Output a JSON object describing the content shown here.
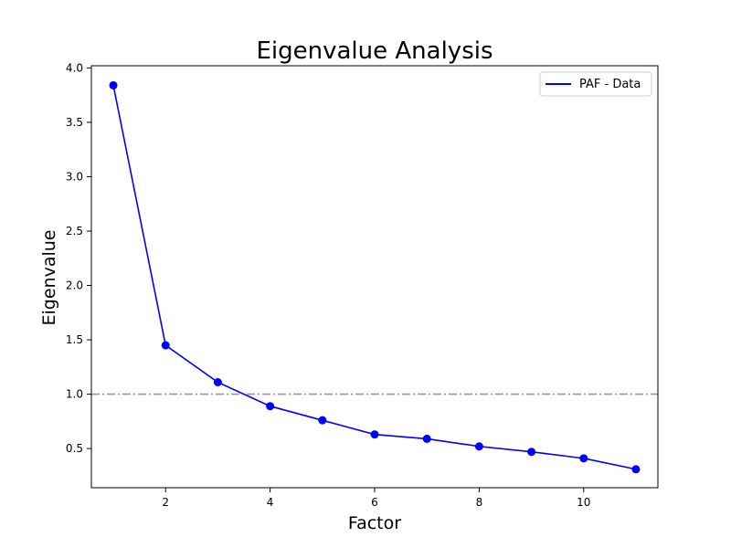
{
  "chart_data": {
    "type": "line",
    "title": "Eigenvalue Analysis",
    "xlabel": "Factor",
    "ylabel": "Eigenvalue",
    "xlim": [
      0.58,
      11.42
    ],
    "ylim": [
      0.14,
      4.02
    ],
    "xticks": [
      2,
      4,
      6,
      8,
      10
    ],
    "yticks": [
      0.5,
      1.0,
      1.5,
      2.0,
      2.5,
      3.0,
      3.5,
      4.0
    ],
    "ytick_labels": [
      "0.5",
      "1.0",
      "1.5",
      "2.0",
      "2.5",
      "3.0",
      "3.5",
      "4.0"
    ],
    "grid": false,
    "legend": {
      "position": "top-right",
      "entries": [
        "PAF - Data"
      ]
    },
    "series": [
      {
        "name": "PAF - Data",
        "color": "#0000ff",
        "marker": "circle",
        "x": [
          1,
          2,
          3,
          4,
          5,
          6,
          7,
          8,
          9,
          10,
          11
        ],
        "y": [
          3.84,
          1.45,
          1.11,
          0.89,
          0.76,
          0.63,
          0.59,
          0.52,
          0.47,
          0.41,
          0.31
        ]
      }
    ],
    "reference_line": {
      "y": 1.0,
      "color": "#999999",
      "style": "dash-dot"
    }
  }
}
